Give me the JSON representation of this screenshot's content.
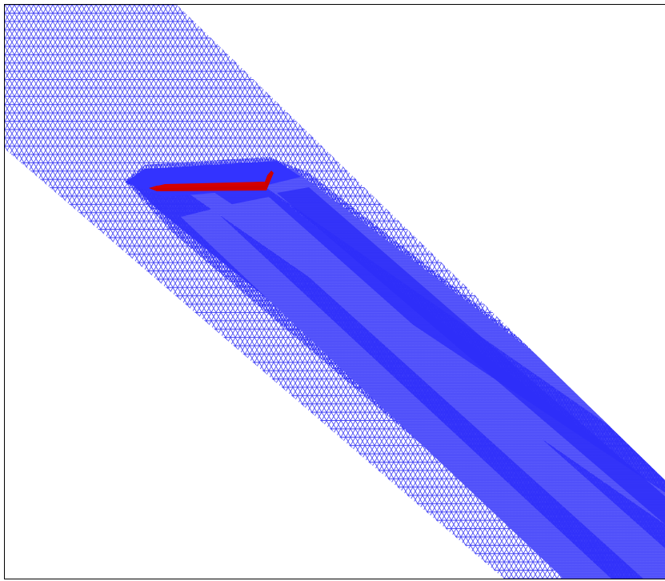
{
  "viewer": {
    "background_color": "#ffffff",
    "frame_color": "#000000"
  },
  "mesh": {
    "element_type": "triangular",
    "coarse_edge_color": "#4a4af5",
    "refined_region_color": "#3333ff",
    "dense_core_color": "#2828f5"
  },
  "body": {
    "shape": "swept-wing-airfoil",
    "fill_color": "#cc0000"
  }
}
